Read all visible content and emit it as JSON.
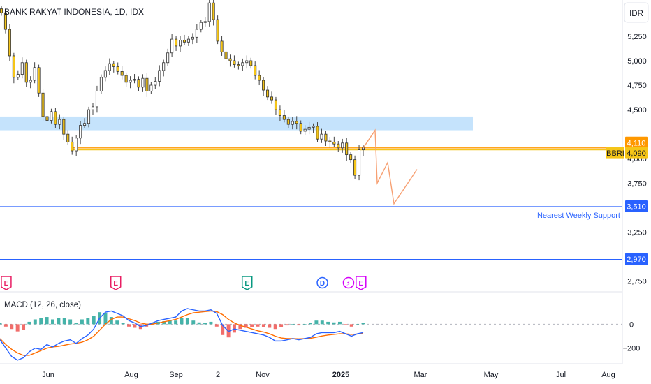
{
  "header": {
    "title": "BANK RAKYAT INDONESIA, 1D, IDX"
  },
  "currency_button": {
    "label": "IDR"
  },
  "chart_data": {
    "type": "candlestick",
    "title": "BANK RAKYAT INDONESIA, 1D, IDX",
    "ylim": [
      2640,
      5620
    ],
    "y_ticks": [
      {
        "value": 5250,
        "label": "5,250"
      },
      {
        "value": 5000,
        "label": "5,000"
      },
      {
        "value": 4750,
        "label": "4,750"
      },
      {
        "value": 4500,
        "label": "4,500"
      },
      {
        "value": 4000,
        "label": "4,000"
      },
      {
        "value": 3750,
        "label": "3,750"
      },
      {
        "value": 3250,
        "label": "3,250"
      },
      {
        "value": 2750,
        "label": "2,750"
      }
    ],
    "x_ticks": [
      "Jun",
      "Aug",
      "Sep",
      "2",
      "Nov",
      "2025",
      "Mar",
      "May",
      "Jul",
      "Aug"
    ],
    "price_series": [
      5490,
      5320,
      5050,
      4830,
      4860,
      4980,
      4780,
      4800,
      4930,
      4670,
      4430,
      4390,
      4480,
      4350,
      4400,
      4250,
      4170,
      4080,
      4210,
      4340,
      4360,
      4500,
      4530,
      4690,
      4830,
      4900,
      4970,
      4940,
      4890,
      4850,
      4780,
      4800,
      4810,
      4730,
      4820,
      4690,
      4750,
      4790,
      4900,
      4980,
      5080,
      5220,
      5150,
      5210,
      5190,
      5220,
      5240,
      5320,
      5390,
      5400,
      5590,
      5420,
      5200,
      5090,
      5020,
      5000,
      4960,
      4950,
      4980,
      5000,
      4950,
      4850,
      4800,
      4700,
      4630,
      4600,
      4500,
      4440,
      4400,
      4350,
      4380,
      4360,
      4280,
      4300,
      4320,
      4330,
      4200,
      4250,
      4180,
      4170,
      4150,
      4110,
      4160,
      4040,
      3990,
      3830,
      4090,
      4110
    ],
    "projection_path": [
      4110,
      4290,
      3750,
      3960,
      3540,
      3890
    ],
    "macd": {
      "label": "MACD (12, 26, close)",
      "ylim": [
        -330,
        270
      ],
      "y_ticks": [
        {
          "value": 0,
          "label": "0"
        },
        {
          "value": -200,
          "label": "−200"
        }
      ],
      "macd_line": [
        -130,
        -200,
        -270,
        -300,
        -280,
        -230,
        -200,
        -210,
        -170,
        -190,
        -160,
        -140,
        -130,
        -160,
        -120,
        -90,
        -40,
        50,
        100,
        110,
        90,
        70,
        30,
        10,
        -20,
        -10,
        10,
        30,
        40,
        50,
        60,
        110,
        130,
        120,
        110,
        110,
        120,
        90,
        -10,
        -60,
        -40,
        -50,
        -60,
        -70,
        -80,
        -90,
        -110,
        -140,
        -140,
        -130,
        -120,
        -130,
        -120,
        -110,
        -80,
        -70,
        -70,
        -70,
        -60,
        -80,
        -100,
        -80,
        -70
      ],
      "signal_line": [
        -120,
        -170,
        -210,
        -240,
        -260,
        -260,
        -240,
        -220,
        -200,
        -190,
        -185,
        -175,
        -165,
        -160,
        -150,
        -130,
        -100,
        -50,
        0,
        40,
        60,
        60,
        45,
        30,
        10,
        0,
        0,
        10,
        20,
        30,
        40,
        60,
        80,
        95,
        100,
        105,
        110,
        105,
        80,
        40,
        10,
        -10,
        -25,
        -40,
        -55,
        -65,
        -80,
        -100,
        -115,
        -120,
        -120,
        -122,
        -120,
        -118,
        -108,
        -98,
        -90,
        -85,
        -80,
        -80,
        -85,
        -82,
        -78
      ],
      "histogram": [
        10,
        -20,
        -40,
        -60,
        -50,
        20,
        40,
        50,
        60,
        40,
        50,
        50,
        40,
        10,
        40,
        50,
        70,
        100,
        90,
        60,
        30,
        10,
        -20,
        -30,
        -40,
        -20,
        10,
        20,
        25,
        30,
        30,
        50,
        50,
        30,
        15,
        10,
        20,
        -20,
        -90,
        -110,
        -70,
        -40,
        -30,
        -25,
        -20,
        -25,
        -30,
        -40,
        -25,
        -10,
        0,
        -10,
        0,
        8,
        30,
        30,
        20,
        15,
        20,
        -5,
        -20,
        0,
        10
      ]
    }
  },
  "levels": [
    {
      "name": "orange-line",
      "value": 4110,
      "label": "4,110",
      "color": "#ff9800"
    },
    {
      "name": "bbri-line",
      "value": 4090,
      "label": "4,090",
      "color": "#f5c518"
    },
    {
      "name": "support-3510",
      "value": 3510,
      "label": "3,510",
      "color": "#2962ff"
    },
    {
      "name": "support-2970",
      "value": 2970,
      "label": "2,970",
      "color": "#2962ff"
    }
  ],
  "zone": {
    "low": 4290,
    "high": 4430,
    "color": "#bbdefb"
  },
  "bbri_tag": {
    "text": "BBRI"
  },
  "support_text": {
    "text": "Nearest Weekly Support"
  },
  "events": [
    {
      "kind": "earnings",
      "glyph": "E",
      "color": "#e91e63",
      "pos": 0.01
    },
    {
      "kind": "earnings",
      "glyph": "E",
      "color": "#e91e63",
      "pos": 0.186
    },
    {
      "kind": "earnings",
      "glyph": "E",
      "color": "#089981",
      "pos": 0.397
    },
    {
      "kind": "dividend",
      "glyph": "D",
      "color": "#2962ff",
      "pos": 0.518
    },
    {
      "kind": "split",
      "glyph": "⚡",
      "color": "#d500f9",
      "pos": 0.56
    },
    {
      "kind": "earnings",
      "glyph": "E",
      "color": "#d500f9",
      "pos": 0.58
    }
  ],
  "colors": {
    "up": "#089981",
    "down": "#f23645",
    "macd": "#2962ff",
    "signal": "#ff6d00",
    "grid": "#e0e3eb",
    "projection": "#f7a072"
  }
}
